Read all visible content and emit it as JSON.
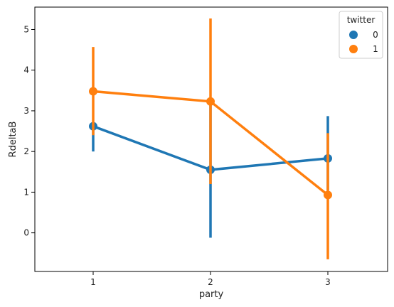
{
  "chart_data": {
    "type": "line",
    "title": "",
    "xlabel": "party",
    "ylabel": "RdeltaB",
    "categories": [
      "1",
      "2",
      "3"
    ],
    "ylim": [
      -0.95,
      5.55
    ],
    "yticks": [
      0,
      1,
      2,
      3,
      4,
      5
    ],
    "grid": false,
    "legend": {
      "title": "twitter",
      "placement": "top-right"
    },
    "series": [
      {
        "name": "0",
        "color": "#1f77b4",
        "values": [
          2.62,
          1.55,
          1.83
        ],
        "ci_low": [
          2.0,
          -0.12,
          1.05
        ],
        "ci_high": [
          2.62,
          3.22,
          2.87
        ]
      },
      {
        "name": "1",
        "color": "#ff7f0e",
        "values": [
          3.48,
          3.23,
          0.93
        ],
        "ci_low": [
          2.4,
          1.2,
          -0.65
        ],
        "ci_high": [
          4.57,
          5.27,
          2.45
        ]
      }
    ]
  }
}
